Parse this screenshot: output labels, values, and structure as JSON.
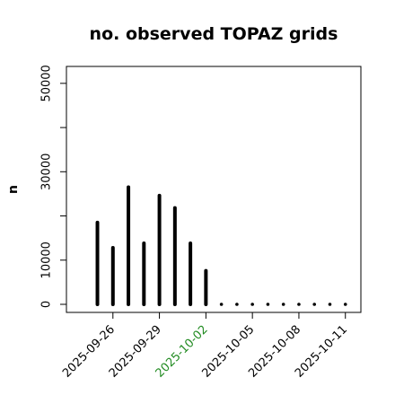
{
  "chart_data": {
    "type": "bar",
    "title": "no. observed TOPAZ grids",
    "xlabel": "",
    "ylabel": "n",
    "ylim": [
      0,
      52000
    ],
    "xlim": [
      "2025-09-23",
      "2025-10-12"
    ],
    "y_ticks": [
      0,
      10000,
      30000,
      50000
    ],
    "x_ticks": [
      {
        "label": "2025-09-26",
        "date": "2025-09-26",
        "color": "#000000"
      },
      {
        "label": "2025-09-29",
        "date": "2025-09-29",
        "color": "#000000"
      },
      {
        "label": "2025-10-02",
        "date": "2025-10-02",
        "color": "#228B22"
      },
      {
        "label": "2025-10-05",
        "date": "2025-10-05",
        "color": "#000000"
      },
      {
        "label": "2025-10-08",
        "date": "2025-10-08",
        "color": "#000000"
      },
      {
        "label": "2025-10-11",
        "date": "2025-10-11",
        "color": "#000000"
      }
    ],
    "grid": false,
    "bar_color": "#000000",
    "points": [
      {
        "date": "2025-09-25",
        "value": 18500
      },
      {
        "date": "2025-09-26",
        "value": 12800
      },
      {
        "date": "2025-09-27",
        "value": 26500
      },
      {
        "date": "2025-09-28",
        "value": 13800
      },
      {
        "date": "2025-09-29",
        "value": 24600
      },
      {
        "date": "2025-09-30",
        "value": 21800
      },
      {
        "date": "2025-10-01",
        "value": 13800
      },
      {
        "date": "2025-10-02",
        "value": 7600
      },
      {
        "date": "2025-10-03",
        "value": 0
      },
      {
        "date": "2025-10-04",
        "value": 0
      },
      {
        "date": "2025-10-05",
        "value": 0
      },
      {
        "date": "2025-10-06",
        "value": 0
      },
      {
        "date": "2025-10-07",
        "value": 0
      },
      {
        "date": "2025-10-08",
        "value": 0
      },
      {
        "date": "2025-10-09",
        "value": 0
      },
      {
        "date": "2025-10-10",
        "value": 0
      },
      {
        "date": "2025-10-11",
        "value": 0
      }
    ]
  }
}
